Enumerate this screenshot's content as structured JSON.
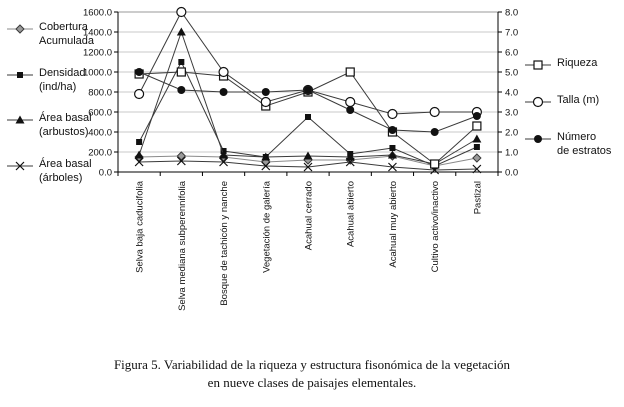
{
  "caption": {
    "line1": "Figura 5. Variabilidad de la riqueza y estructura fisonómica de la vegetación",
    "line2": "en nueve clases de paisajes elementales."
  },
  "chart_data": {
    "type": "line",
    "title": "",
    "xlabel": "",
    "ylabel_left": "",
    "ylabel_right": "",
    "grid": true,
    "legend_positions": {
      "left_axis_series": "left",
      "right_axis_series": "right"
    },
    "categories": [
      "Selva baja caducifolia",
      "Selva mediana subperennifolia",
      "Bosque de tachicón y nanche",
      "Vegetación de galería",
      "Acahual cerrado",
      "Acahual abierto",
      "Acahual muy abierto",
      "Cultivo activo/inactivo",
      "Pastizal"
    ],
    "left_axis": {
      "min": 0,
      "max": 1600,
      "step": 200
    },
    "right_axis": {
      "min": 0,
      "max": 8,
      "step": 1
    },
    "series": [
      {
        "id": "cobertura-acumulada",
        "name": "Cobertura\nAcumulada",
        "marker": "diamond",
        "axis": "left",
        "color": "#9a9a9a",
        "line_color": "#8a8a8a",
        "values": [
          150,
          160,
          150,
          100,
          120,
          120,
          160,
          60,
          140
        ]
      },
      {
        "id": "densidad",
        "name": "Densidad\n(ind/ha)",
        "marker": "square",
        "axis": "left",
        "color": "#111111",
        "line_color": "#3a3a3a",
        "values": [
          300,
          1100,
          210,
          150,
          550,
          180,
          240,
          60,
          250
        ]
      },
      {
        "id": "area-basal-arbustos",
        "name": "Área basal\n(arbustos)",
        "marker": "triangle",
        "axis": "left",
        "color": "#111111",
        "line_color": "#3a3a3a",
        "values": [
          170,
          1400,
          170,
          150,
          160,
          150,
          170,
          80,
          330
        ]
      },
      {
        "id": "area-basal-arboles",
        "name": "Área basal\n(árboles)",
        "marker": "x",
        "axis": "left",
        "color": "#111111",
        "line_color": "#3a3a3a",
        "values": [
          100,
          110,
          100,
          60,
          50,
          100,
          50,
          20,
          30
        ]
      },
      {
        "id": "riqueza",
        "name": "Riqueza",
        "marker": "square-open",
        "axis": "right",
        "color": "#111111",
        "line_color": "#3a3a3a",
        "values": [
          4.9,
          5.0,
          4.8,
          3.3,
          4.0,
          5.0,
          2.0,
          0.4,
          2.3
        ]
      },
      {
        "id": "talla",
        "name": "Talla (m)",
        "marker": "circle-open",
        "axis": "right",
        "color": "#111111",
        "line_color": "#3a3a3a",
        "values": [
          3.9,
          8.0,
          5.0,
          3.5,
          4.1,
          3.5,
          2.9,
          3.0,
          3.0
        ]
      },
      {
        "id": "numero-de-estratos",
        "name": "Número\nde estratos",
        "marker": "circle",
        "axis": "right",
        "color": "#111111",
        "line_color": "#3a3a3a",
        "values": [
          5.0,
          4.1,
          4.0,
          4.0,
          4.1,
          3.1,
          2.1,
          2.0,
          2.8
        ]
      }
    ]
  }
}
